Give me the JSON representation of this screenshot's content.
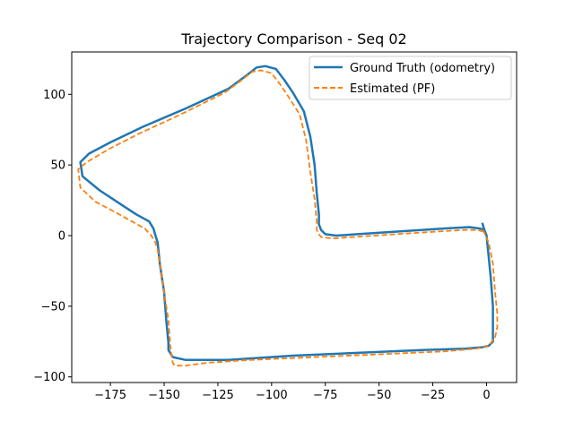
{
  "chart_data": {
    "type": "line",
    "title": "Trajectory Comparison - Seq 02",
    "xlabel": "",
    "ylabel": "",
    "xlim": [
      -193,
      14
    ],
    "ylim": [
      -104,
      130
    ],
    "xticks": [
      -175,
      -150,
      -125,
      -100,
      -75,
      -50,
      -25,
      0
    ],
    "yticks": [
      -100,
      -50,
      0,
      50,
      100
    ],
    "xtick_labels": [
      "−175",
      "−150",
      "−125",
      "−100",
      "−75",
      "−50",
      "−25",
      "0"
    ],
    "ytick_labels": [
      "−100",
      "−50",
      "0",
      "50",
      "100"
    ],
    "grid": false,
    "legend_position": "upper right",
    "series": [
      {
        "name": "Ground Truth (odometry)",
        "color": "#1f77b4",
        "style": "solid",
        "x": [
          -2,
          -1,
          0,
          1,
          2,
          3,
          3,
          3,
          1,
          -2,
          -10,
          -30,
          -60,
          -90,
          -120,
          -140,
          -146,
          -148,
          -148,
          -149,
          -150,
          -152,
          -153,
          -154,
          -155,
          -157,
          -163,
          -170,
          -180,
          -188,
          -189,
          -185,
          -175,
          -160,
          -140,
          -120,
          -112,
          -107,
          -103,
          -98,
          -94,
          -90,
          -85,
          -82,
          -80,
          -79,
          -78,
          -78,
          -77,
          -75,
          -70,
          -60,
          -40,
          -20,
          -8,
          -3,
          -1,
          -2
        ],
        "y": [
          9,
          4,
          0,
          -15,
          -30,
          -50,
          -65,
          -75,
          -78,
          -79,
          -80,
          -81,
          -83,
          -85,
          -88,
          -88,
          -86,
          -81,
          -76,
          -60,
          -40,
          -20,
          -5,
          0,
          5,
          10,
          15,
          22,
          32,
          42,
          52,
          58,
          66,
          77,
          90,
          104,
          113,
          119,
          120,
          118,
          110,
          101,
          88,
          70,
          50,
          30,
          15,
          8,
          4,
          1,
          0,
          1,
          3,
          5,
          6,
          5,
          4,
          9
        ]
      },
      {
        "name": "Estimated (PF)",
        "color": "#ff7f0e",
        "style": "dashed",
        "x": [
          -2,
          -1,
          1,
          3,
          4,
          5,
          5,
          4,
          1,
          -5,
          -20,
          -50,
          -80,
          -110,
          -130,
          -140,
          -145,
          -146,
          -147,
          -148,
          -150,
          -152,
          -153,
          -154,
          -156,
          -159,
          -165,
          -172,
          -182,
          -189,
          -190,
          -186,
          -176,
          -162,
          -142,
          -122,
          -114,
          -109,
          -105,
          -100,
          -96,
          -92,
          -87,
          -84,
          -82,
          -80,
          -79,
          -79,
          -78,
          -77,
          -72,
          -62,
          -42,
          -22,
          -10,
          -4,
          -2
        ],
        "y": [
          4,
          2,
          -5,
          -20,
          -40,
          -55,
          -65,
          -72,
          -78,
          -80,
          -82,
          -84,
          -86,
          -88,
          -90,
          -92,
          -92,
          -90,
          -80,
          -60,
          -40,
          -20,
          -10,
          -5,
          0,
          5,
          10,
          16,
          24,
          34,
          47,
          52,
          61,
          72,
          86,
          101,
          110,
          116,
          117,
          115,
          107,
          98,
          86,
          68,
          45,
          26,
          10,
          4,
          1,
          -1,
          -2,
          -1,
          1,
          3,
          4,
          4,
          3
        ]
      }
    ]
  }
}
